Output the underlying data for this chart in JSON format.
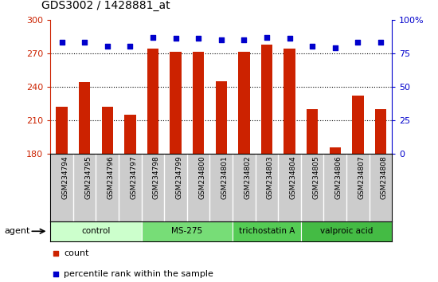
{
  "title": "GDS3002 / 1428881_at",
  "samples": [
    "GSM234794",
    "GSM234795",
    "GSM234796",
    "GSM234797",
    "GSM234798",
    "GSM234799",
    "GSM234800",
    "GSM234801",
    "GSM234802",
    "GSM234803",
    "GSM234804",
    "GSM234805",
    "GSM234806",
    "GSM234807",
    "GSM234808"
  ],
  "counts": [
    222,
    244,
    222,
    215,
    274,
    271,
    271,
    245,
    271,
    278,
    274,
    220,
    186,
    232,
    220
  ],
  "percentile_ranks": [
    83,
    83,
    80,
    80,
    87,
    86,
    86,
    85,
    85,
    87,
    86,
    80,
    79,
    83,
    83
  ],
  "bar_color": "#cc2200",
  "dot_color": "#0000cc",
  "ylim_left": [
    180,
    300
  ],
  "ylim_right": [
    0,
    100
  ],
  "yticks_left": [
    180,
    210,
    240,
    270,
    300
  ],
  "yticks_right": [
    0,
    25,
    50,
    75,
    100
  ],
  "grid_lines": [
    210,
    240,
    270
  ],
  "agents": [
    {
      "label": "control",
      "start": 0,
      "end": 4,
      "color": "#ccffcc"
    },
    {
      "label": "MS-275",
      "start": 4,
      "end": 8,
      "color": "#77dd77"
    },
    {
      "label": "trichostatin A",
      "start": 8,
      "end": 11,
      "color": "#55cc55"
    },
    {
      "label": "valproic acid",
      "start": 11,
      "end": 15,
      "color": "#44bb44"
    }
  ],
  "tick_label_color_left": "#cc2200",
  "tick_label_color_right": "#0000cc",
  "sample_bg_color": "#cccccc",
  "sample_sep_color": "#ffffff",
  "agent_text_color": "#000000",
  "agent_border_color": "#000000"
}
